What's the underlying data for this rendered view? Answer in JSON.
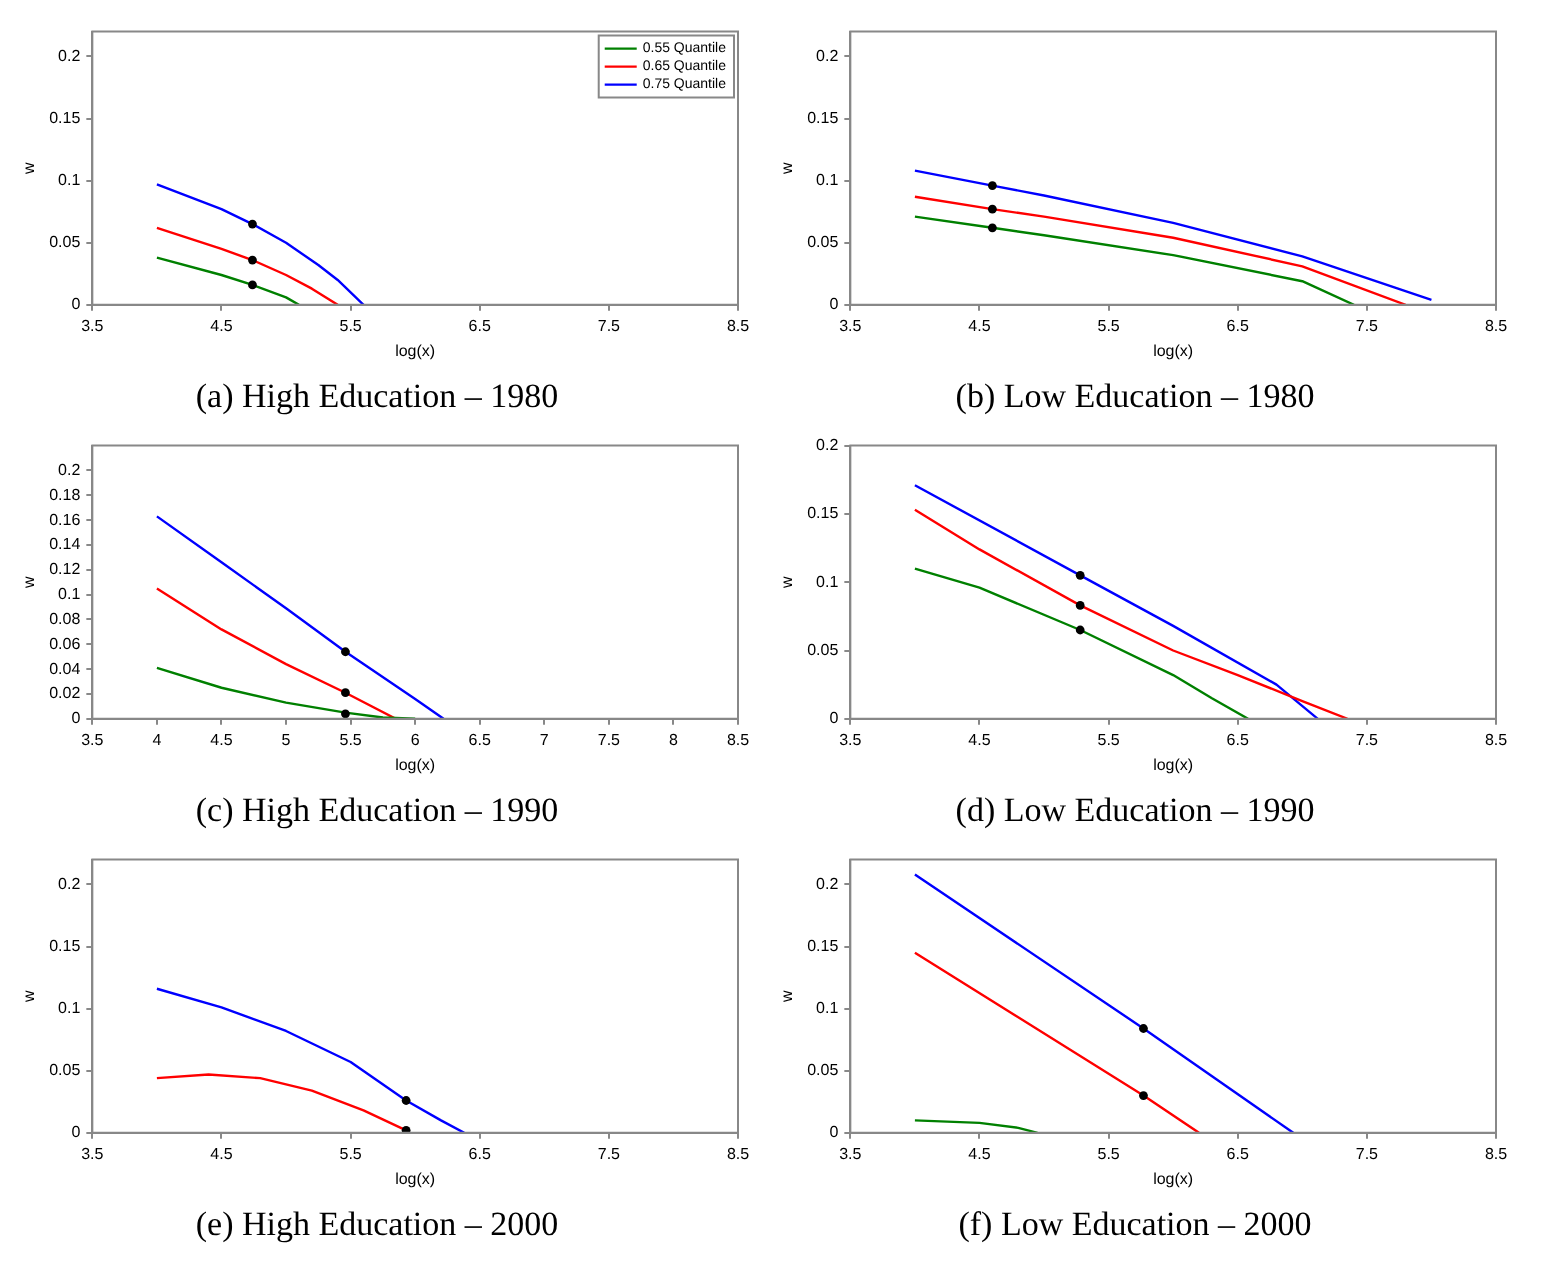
{
  "chart_data": [
    {
      "type": "line",
      "title": "(a) High Education – 1980",
      "xlabel": "log(x)",
      "ylabel": "w",
      "xlim": [
        3.5,
        8.5
      ],
      "xticks": [
        3.5,
        4.5,
        5.5,
        6.5,
        7.5,
        8.5
      ],
      "ylim": [
        0,
        0.22
      ],
      "yticks": [
        0,
        0.05,
        0.1,
        0.15,
        0.2
      ],
      "grid": false,
      "legend": "top right",
      "series": [
        {
          "name": "0.55 Quantile",
          "color": "#008000",
          "x": [
            4.0,
            4.5,
            4.74,
            5.0,
            5.1
          ],
          "values": [
            0.038,
            0.024,
            0.016,
            0.006,
            0
          ]
        },
        {
          "name": "0.65 Quantile",
          "color": "#ff0000",
          "x": [
            4.0,
            4.5,
            4.74,
            5.0,
            5.2,
            5.4
          ],
          "values": [
            0.062,
            0.045,
            0.036,
            0.024,
            0.013,
            0
          ]
        },
        {
          "name": "0.75 Quantile",
          "color": "#0000ff",
          "x": [
            4.0,
            4.5,
            4.74,
            5.0,
            5.25,
            5.4,
            5.6
          ],
          "values": [
            0.097,
            0.077,
            0.065,
            0.05,
            0.032,
            0.02,
            0
          ]
        },
        {
          "type": "scatter",
          "color": "#000000",
          "x": [
            4.74,
            4.74,
            4.74
          ],
          "values": [
            0.016,
            0.036,
            0.065
          ]
        }
      ]
    },
    {
      "type": "line",
      "title": "(b) Low Education – 1980",
      "xlabel": "log(x)",
      "ylabel": "w",
      "xlim": [
        3.5,
        8.5
      ],
      "xticks": [
        3.5,
        4.5,
        5.5,
        6.5,
        7.5,
        8.5
      ],
      "ylim": [
        0,
        0.22
      ],
      "yticks": [
        0,
        0.05,
        0.1,
        0.15,
        0.2
      ],
      "grid": false,
      "series": [
        {
          "color": "#008000",
          "x": [
            4.0,
            4.6,
            5.0,
            6.0,
            7.0,
            7.4
          ],
          "values": [
            0.071,
            0.062,
            0.056,
            0.04,
            0.019,
            0
          ]
        },
        {
          "color": "#ff0000",
          "x": [
            4.0,
            4.6,
            5.0,
            6.0,
            7.0,
            7.8
          ],
          "values": [
            0.087,
            0.077,
            0.071,
            0.054,
            0.031,
            0
          ]
        },
        {
          "color": "#0000ff",
          "x": [
            4.0,
            4.6,
            5.0,
            6.0,
            7.0,
            8.0
          ],
          "values": [
            0.108,
            0.096,
            0.088,
            0.066,
            0.039,
            0.004
          ]
        },
        {
          "type": "scatter",
          "color": "#000000",
          "x": [
            4.6,
            4.6,
            4.6
          ],
          "values": [
            0.062,
            0.077,
            0.096
          ]
        }
      ]
    },
    {
      "type": "line",
      "title": "(c) High Education – 1990",
      "xlabel": "log(x)",
      "ylabel": "w",
      "xlim": [
        3.5,
        8.5
      ],
      "xticks": [
        3.5,
        4,
        4.5,
        5,
        5.5,
        6,
        6.5,
        7,
        7.5,
        8,
        8.5
      ],
      "ylim": [
        0,
        0.22
      ],
      "yticks": [
        0,
        0.02,
        0.04,
        0.06,
        0.08,
        0.1,
        0.12,
        0.14,
        0.16,
        0.18,
        0.2
      ],
      "grid": false,
      "series": [
        {
          "color": "#008000",
          "x": [
            4.0,
            4.5,
            5.0,
            5.46,
            5.75,
            6.0
          ],
          "values": [
            0.041,
            0.025,
            0.013,
            0.005,
            0.001,
            0
          ]
        },
        {
          "color": "#ff0000",
          "x": [
            4.0,
            4.5,
            5.0,
            5.46,
            5.85
          ],
          "values": [
            0.105,
            0.072,
            0.044,
            0.021,
            0
          ]
        },
        {
          "color": "#0000ff",
          "x": [
            4.0,
            4.5,
            5.0,
            5.46,
            6.0,
            6.22
          ],
          "values": [
            0.163,
            0.126,
            0.089,
            0.054,
            0.016,
            0
          ]
        },
        {
          "type": "scatter",
          "color": "#000000",
          "x": [
            5.46,
            5.46,
            5.46
          ],
          "values": [
            0.004,
            0.021,
            0.054
          ]
        }
      ]
    },
    {
      "type": "line",
      "title": "(d) Low Education – 1990",
      "xlabel": "log(x)",
      "ylabel": "w",
      "xlim": [
        3.5,
        8.5
      ],
      "xticks": [
        3.5,
        4.5,
        5.5,
        6.5,
        7.5,
        8.5
      ],
      "ylim": [
        0,
        0.2
      ],
      "yticks": [
        0,
        0.05,
        0.1,
        0.15,
        0.2
      ],
      "grid": false,
      "series": [
        {
          "color": "#008000",
          "x": [
            4.0,
            4.5,
            5.28,
            6.0,
            6.3,
            6.58
          ],
          "values": [
            0.11,
            0.096,
            0.065,
            0.032,
            0.015,
            0
          ]
        },
        {
          "color": "#ff0000",
          "x": [
            4.0,
            4.5,
            5.28,
            6.0,
            6.5,
            7.0,
            7.35
          ],
          "values": [
            0.153,
            0.124,
            0.083,
            0.05,
            0.032,
            0.013,
            0
          ]
        },
        {
          "color": "#0000ff",
          "x": [
            4.0,
            5.28,
            6.0,
            6.8,
            7.12
          ],
          "values": [
            0.171,
            0.105,
            0.068,
            0.025,
            0
          ]
        },
        {
          "type": "scatter",
          "color": "#000000",
          "x": [
            5.28,
            5.28,
            5.28
          ],
          "values": [
            0.065,
            0.083,
            0.105
          ]
        }
      ]
    },
    {
      "type": "line",
      "title": "(e) High Education – 2000",
      "xlabel": "log(x)",
      "ylabel": "w",
      "xlim": [
        3.5,
        8.5
      ],
      "xticks": [
        3.5,
        4.5,
        5.5,
        6.5,
        7.5,
        8.5
      ],
      "ylim": [
        0,
        0.22
      ],
      "yticks": [
        0,
        0.05,
        0.1,
        0.15,
        0.2
      ],
      "grid": false,
      "series": [
        {
          "color": "#ff0000",
          "x": [
            4.0,
            4.4,
            4.8,
            5.2,
            5.6,
            5.93,
            5.95
          ],
          "values": [
            0.044,
            0.047,
            0.044,
            0.034,
            0.018,
            0.002,
            0
          ]
        },
        {
          "color": "#0000ff",
          "x": [
            4.0,
            4.5,
            5.0,
            5.5,
            5.93,
            6.2,
            6.38
          ],
          "values": [
            0.116,
            0.101,
            0.082,
            0.057,
            0.026,
            0.01,
            0
          ]
        },
        {
          "type": "scatter",
          "color": "#000000",
          "x": [
            5.93,
            5.93
          ],
          "values": [
            0.002,
            0.026
          ]
        }
      ]
    },
    {
      "type": "line",
      "title": "(f) Low Education – 2000",
      "xlabel": "log(x)",
      "ylabel": "w",
      "xlim": [
        3.5,
        8.5
      ],
      "xticks": [
        3.5,
        4.5,
        5.5,
        6.5,
        7.5,
        8.5
      ],
      "ylim": [
        0,
        0.22
      ],
      "yticks": [
        0,
        0.05,
        0.1,
        0.15,
        0.2
      ],
      "grid": false,
      "series": [
        {
          "color": "#008000",
          "x": [
            4.0,
            4.5,
            4.8,
            4.95
          ],
          "values": [
            0.01,
            0.008,
            0.004,
            0
          ]
        },
        {
          "color": "#ff0000",
          "x": [
            4.0,
            5.77,
            6.2
          ],
          "values": [
            0.145,
            0.03,
            0
          ]
        },
        {
          "color": "#0000ff",
          "x": [
            4.0,
            5.77,
            6.93
          ],
          "values": [
            0.208,
            0.084,
            0
          ]
        },
        {
          "type": "scatter",
          "color": "#000000",
          "x": [
            5.77,
            5.77
          ],
          "values": [
            0.03,
            0.084
          ]
        }
      ]
    }
  ]
}
